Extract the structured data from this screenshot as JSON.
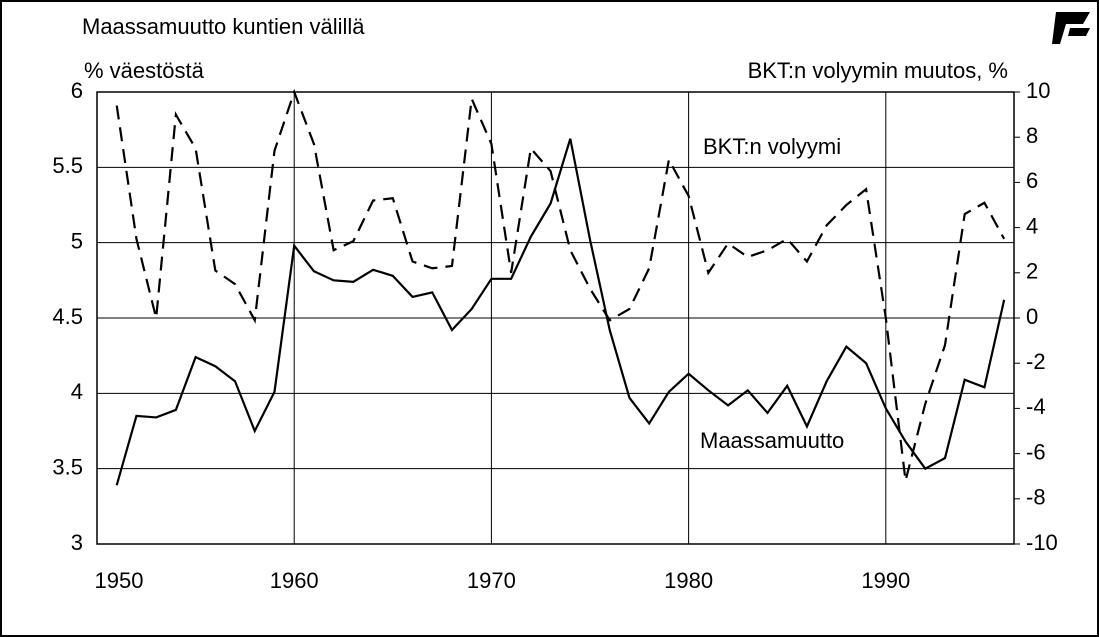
{
  "chart_data": {
    "type": "line",
    "ylabel": [
      "Maassamuutto kuntien välillä",
      "% väestöstä"
    ],
    "y2label": "BKT:n volyymin muutos, %",
    "annotations": [
      "BKT:n volyymi",
      "Maassamuutto"
    ],
    "x": [
      1951,
      1952,
      1953,
      1954,
      1955,
      1956,
      1957,
      1958,
      1959,
      1960,
      1961,
      1962,
      1963,
      1964,
      1965,
      1966,
      1967,
      1968,
      1969,
      1970,
      1971,
      1972,
      1973,
      1974,
      1975,
      1976,
      1977,
      1978,
      1979,
      1980,
      1981,
      1982,
      1983,
      1984,
      1985,
      1986,
      1987,
      1988,
      1989,
      1990,
      1991,
      1992,
      1993,
      1994,
      1995,
      1996
    ],
    "series": [
      {
        "name": "Maassamuutto",
        "color": "#000000",
        "style": "solid",
        "values": [
          3.39,
          3.85,
          3.84,
          3.89,
          4.24,
          4.18,
          4.08,
          3.75,
          4.01,
          4.98,
          4.81,
          4.75,
          4.74,
          4.82,
          4.78,
          4.64,
          4.67,
          4.42,
          4.56,
          4.76,
          4.76,
          5.04,
          5.26,
          5.69,
          5.02,
          4.42,
          3.97,
          3.8,
          4.01,
          4.13,
          4.02,
          3.92,
          4.02,
          3.87,
          4.05,
          3.78,
          4.08,
          4.31,
          4.2,
          3.9,
          3.68,
          3.5,
          3.57,
          4.09,
          4.04,
          4.62
        ]
      },
      {
        "name": "BKT:n volyymi",
        "color": "#000000",
        "style": "dashed",
        "axis": "y2",
        "values": [
          9.4,
          3.5,
          0,
          9.0,
          7.5,
          2.1,
          1.5,
          -0.1,
          7.4,
          10,
          7.7,
          3.0,
          3.4,
          5.2,
          5.3,
          2.5,
          2.2,
          2.3,
          9.7,
          7.7,
          2.0,
          7.5,
          6.5,
          3.0,
          1.3,
          -0.1,
          0.4,
          2.2,
          7.0,
          5.4,
          2.0,
          3.3,
          2.7,
          3.0,
          3.5,
          2.5,
          4.1,
          5.0,
          5.7,
          0,
          -7.2,
          -3.8,
          -1.2,
          4.6,
          5.1,
          3.5
        ]
      }
    ],
    "xlim": [
      1950,
      1996.5
    ],
    "xticks": [
      1950,
      1960,
      1970,
      1980,
      1990
    ],
    "ylim": [
      3,
      6
    ],
    "yticks": [
      3,
      3.5,
      4,
      4.5,
      5,
      5.5,
      6
    ],
    "y2lim": [
      -10,
      10
    ],
    "y2ticks": [
      -10,
      -8,
      -6,
      -4,
      -2,
      0,
      2,
      4,
      6,
      8,
      10
    ],
    "grid": true
  }
}
